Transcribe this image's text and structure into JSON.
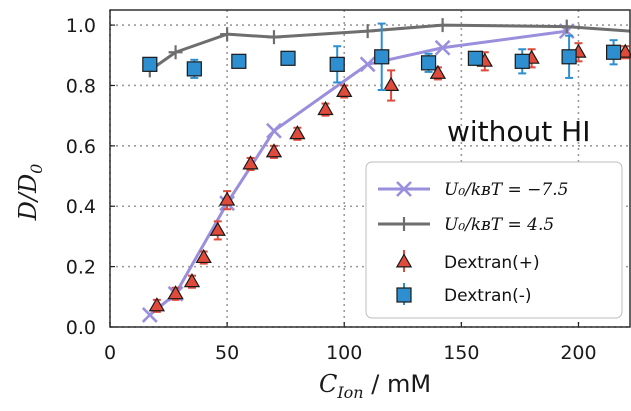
{
  "chart_data": {
    "type": "scatter",
    "xlabel": "C_Ion / mM",
    "xlabel_main": "C",
    "xlabel_sub": "Ion",
    "xlabel_unit": " / mM",
    "ylabel": "D/D_0",
    "ylabel_main": "D/D",
    "ylabel_sub": "0",
    "xlim": [
      0,
      222
    ],
    "ylim": [
      0,
      1.05
    ],
    "xticks": [
      "0",
      "50",
      "100",
      "150",
      "200"
    ],
    "yticks": [
      "0.0",
      "0.2",
      "0.4",
      "0.6",
      "0.8",
      "1.0"
    ],
    "grid": true,
    "annotation": "without HI",
    "legend_position": "lower-right",
    "series": [
      {
        "name": "U_0/k_BT = -7.5",
        "legend_label": "U₀/kʙT = −7.5",
        "kind": "line",
        "marker": "x",
        "color": "#9a8fdc",
        "x": [
          17,
          28,
          50,
          70,
          110,
          142,
          195
        ],
        "y": [
          0.04,
          0.11,
          0.41,
          0.65,
          0.87,
          0.925,
          0.98
        ]
      },
      {
        "name": "U_0/k_BT = 4.5",
        "legend_label": "U₀/kʙT = 4.5",
        "kind": "line",
        "marker": "+",
        "color": "#6e6e6e",
        "x": [
          17,
          28,
          50,
          70,
          110,
          142,
          195,
          222
        ],
        "y": [
          0.85,
          0.91,
          0.97,
          0.96,
          0.98,
          1.0,
          0.995,
          0.98
        ]
      },
      {
        "name": "Dextran(+)",
        "legend_label": "Dextran(+)",
        "kind": "scatter",
        "marker": "triangle",
        "color": "#e04a3a",
        "errorbar_color": "#e04a3a",
        "x": [
          20,
          28,
          35,
          40,
          46,
          50,
          60,
          70,
          80,
          92,
          100,
          120,
          140,
          160,
          180,
          200,
          220
        ],
        "y": [
          0.07,
          0.11,
          0.15,
          0.23,
          0.32,
          0.42,
          0.54,
          0.58,
          0.64,
          0.72,
          0.78,
          0.8,
          0.84,
          0.88,
          0.89,
          0.91,
          0.91
        ],
        "err": [
          0.02,
          0.02,
          0.02,
          0.02,
          0.03,
          0.03,
          0.02,
          0.02,
          0.02,
          0.02,
          0.02,
          0.05,
          0.02,
          0.03,
          0.03,
          0.03,
          0.02
        ]
      },
      {
        "name": "Dextran(-)",
        "legend_label": "Dextran(-)",
        "kind": "scatter",
        "marker": "square",
        "color": "#2d8fd0",
        "errorbar_color": "#2d8fd0",
        "x": [
          17,
          36,
          55,
          76,
          97,
          116,
          136,
          156,
          176,
          196,
          215
        ],
        "y": [
          0.87,
          0.855,
          0.88,
          0.89,
          0.87,
          0.895,
          0.875,
          0.89,
          0.88,
          0.895,
          0.91
        ],
        "err": [
          0.02,
          0.03,
          0.02,
          0.02,
          0.06,
          0.11,
          0.03,
          0.02,
          0.04,
          0.07,
          0.04
        ]
      }
    ]
  }
}
